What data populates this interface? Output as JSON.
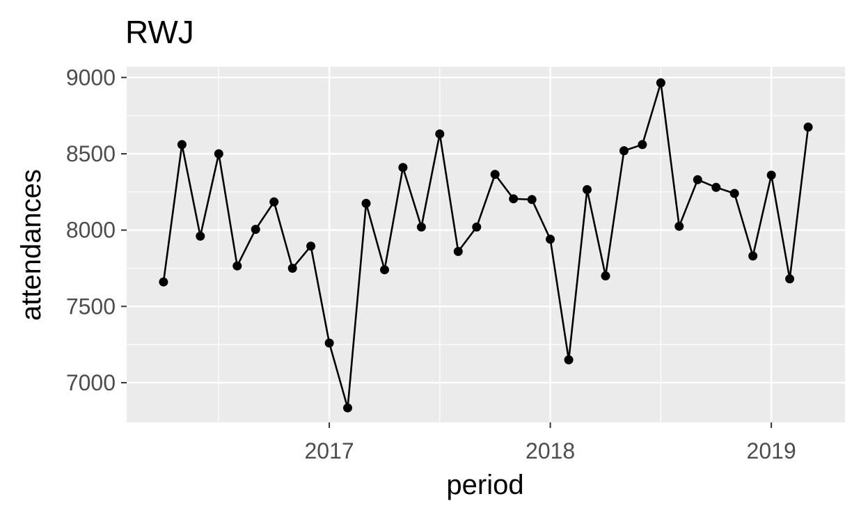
{
  "chart_data": {
    "type": "line",
    "title": "RWJ",
    "xlabel": "period",
    "ylabel": "attendances",
    "x_tick_labels": [
      "2017",
      "2018",
      "2019"
    ],
    "y_tick_labels": [
      "7000",
      "7500",
      "8000",
      "8500",
      "9000"
    ],
    "x_ticks": [
      "2017-01",
      "2018-01",
      "2019-01"
    ],
    "y_ticks": [
      7000,
      7500,
      8000,
      8500,
      9000
    ],
    "xlim": [
      "2016-02",
      "2019-05"
    ],
    "ylim": [
      6740,
      9070
    ],
    "grid": true,
    "legend": "none",
    "colors": {
      "panel_background": "#ebebeb",
      "grid": "#ffffff",
      "series": "#000000",
      "tick_text": "#4d4d4d"
    },
    "series": [
      {
        "x": [
          "2016-04",
          "2016-05",
          "2016-06",
          "2016-07",
          "2016-08",
          "2016-09",
          "2016-10",
          "2016-11",
          "2016-12",
          "2017-01",
          "2017-02",
          "2017-03",
          "2017-04",
          "2017-05",
          "2017-06",
          "2017-07",
          "2017-08",
          "2017-09",
          "2017-10",
          "2017-11",
          "2017-12",
          "2018-01",
          "2018-02",
          "2018-03",
          "2018-04",
          "2018-05",
          "2018-06",
          "2018-07",
          "2018-08",
          "2018-09",
          "2018-10",
          "2018-11",
          "2018-12",
          "2019-01",
          "2019-02",
          "2019-03"
        ],
        "values": [
          7660,
          8560,
          7960,
          8500,
          7765,
          8005,
          8185,
          7750,
          7895,
          7260,
          6835,
          8175,
          7740,
          8410,
          8020,
          8630,
          7860,
          8020,
          8365,
          8205,
          8200,
          7940,
          7150,
          8265,
          7700,
          8520,
          8560,
          8965,
          8025,
          8330,
          8280,
          8240,
          7830,
          8360,
          7680,
          8675
        ]
      }
    ]
  }
}
